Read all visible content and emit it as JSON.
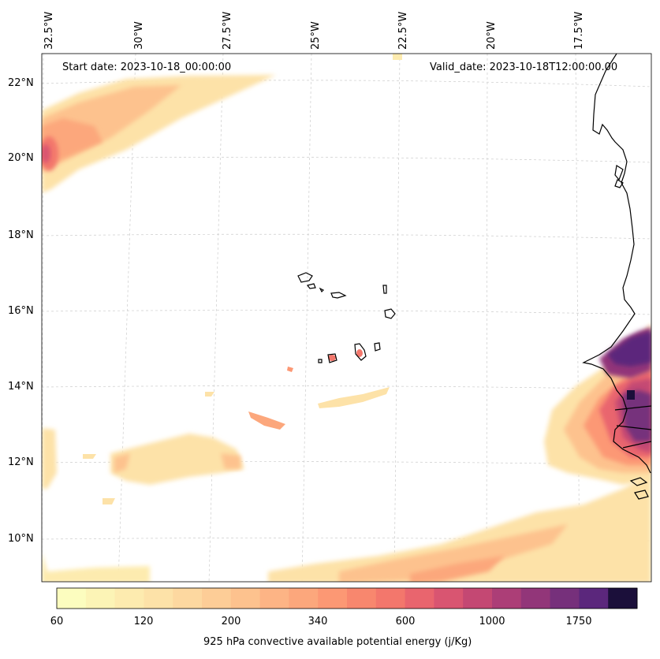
{
  "header": {
    "start_date": "Start date: 2023-10-18_00:00:00",
    "valid_date": "Valid_date: 2023-10-18T12:00:00.00"
  },
  "axes": {
    "lon_labels": [
      "32.5°W",
      "30°W",
      "27.5°W",
      "25°W",
      "22.5°W",
      "20°W",
      "17.5°W"
    ],
    "lat_labels": [
      "22°N",
      "20°N",
      "18°N",
      "16°N",
      "14°N",
      "12°N",
      "10°N"
    ]
  },
  "colorbar": {
    "tick_labels": [
      "60",
      "120",
      "200",
      "340",
      "600",
      "1000",
      "1750"
    ],
    "label": "925 hPa convective available potential energy (j/Kg)",
    "colors": [
      "#fcfdbf",
      "#fcf4b6",
      "#fdebaf",
      "#fde2a8",
      "#fdd8a0",
      "#fdcd97",
      "#fdc28e",
      "#fdb485",
      "#fca77c",
      "#fc9874",
      "#f8876e",
      "#f3776c",
      "#e9656e",
      "#d95571",
      "#c44873",
      "#ac3e77",
      "#923679",
      "#76307b",
      "#5b277c",
      "#1b0f3a"
    ]
  },
  "places": {
    "island_names": []
  }
}
